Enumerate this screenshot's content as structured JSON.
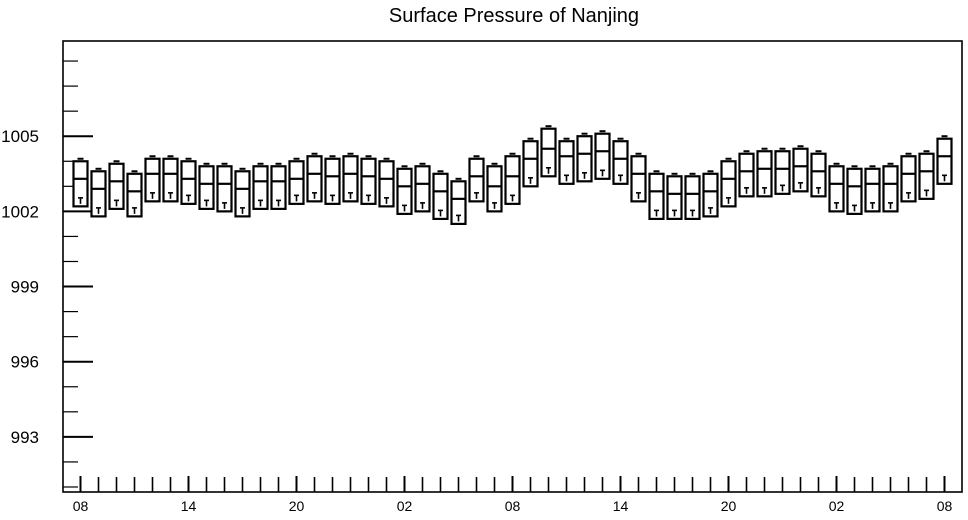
{
  "chart_data": {
    "type": "candlestick-box",
    "title": "Surface Pressure of Nanjing",
    "xlabel": "",
    "ylabel": "",
    "ylim": [
      990.8,
      1008.8
    ],
    "y_ticks": [
      993,
      996,
      999,
      1002,
      1005
    ],
    "x_ticks": [
      "08",
      "14",
      "20",
      "02",
      "08",
      "14",
      "20",
      "02",
      "08"
    ],
    "grid": false,
    "series": [
      {
        "boxes": [
          {
            "x": 0,
            "high": 1004.1,
            "top": 1004.0,
            "mid": 1003.3,
            "bottom": 1002.2,
            "low": 1002.3
          },
          {
            "x": 1,
            "high": 1003.7,
            "top": 1003.6,
            "mid": 1002.9,
            "bottom": 1001.8,
            "low": 1001.9
          },
          {
            "x": 2,
            "high": 1004.0,
            "top": 1003.9,
            "mid": 1003.2,
            "bottom": 1002.1,
            "low": 1002.2
          },
          {
            "x": 3,
            "high": 1003.6,
            "top": 1003.5,
            "mid": 1002.8,
            "bottom": 1001.8,
            "low": 1001.9
          },
          {
            "x": 4,
            "high": 1004.2,
            "top": 1004.1,
            "mid": 1003.5,
            "bottom": 1002.4,
            "low": 1002.5
          },
          {
            "x": 5,
            "high": 1004.2,
            "top": 1004.1,
            "mid": 1003.5,
            "bottom": 1002.4,
            "low": 1002.5
          },
          {
            "x": 6,
            "high": 1004.1,
            "top": 1004.0,
            "mid": 1003.3,
            "bottom": 1002.3,
            "low": 1002.4
          },
          {
            "x": 7,
            "high": 1003.9,
            "top": 1003.8,
            "mid": 1003.1,
            "bottom": 1002.1,
            "low": 1002.2
          },
          {
            "x": 8,
            "high": 1003.9,
            "top": 1003.8,
            "mid": 1003.1,
            "bottom": 1002.0,
            "low": 1002.1
          },
          {
            "x": 9,
            "high": 1003.7,
            "top": 1003.6,
            "mid": 1002.9,
            "bottom": 1001.8,
            "low": 1001.9
          },
          {
            "x": 10,
            "high": 1003.9,
            "top": 1003.8,
            "mid": 1003.2,
            "bottom": 1002.1,
            "low": 1002.2
          },
          {
            "x": 11,
            "high": 1003.9,
            "top": 1003.8,
            "mid": 1003.2,
            "bottom": 1002.1,
            "low": 1002.2
          },
          {
            "x": 12,
            "high": 1004.1,
            "top": 1004.0,
            "mid": 1003.3,
            "bottom": 1002.3,
            "low": 1002.4
          },
          {
            "x": 13,
            "high": 1004.3,
            "top": 1004.2,
            "mid": 1003.5,
            "bottom": 1002.4,
            "low": 1002.5
          },
          {
            "x": 14,
            "high": 1004.2,
            "top": 1004.1,
            "mid": 1003.4,
            "bottom": 1002.3,
            "low": 1002.4
          },
          {
            "x": 15,
            "high": 1004.3,
            "top": 1004.2,
            "mid": 1003.5,
            "bottom": 1002.4,
            "low": 1002.5
          },
          {
            "x": 16,
            "high": 1004.2,
            "top": 1004.1,
            "mid": 1003.4,
            "bottom": 1002.3,
            "low": 1002.4
          },
          {
            "x": 17,
            "high": 1004.1,
            "top": 1004.0,
            "mid": 1003.3,
            "bottom": 1002.2,
            "low": 1002.3
          },
          {
            "x": 18,
            "high": 1003.8,
            "top": 1003.7,
            "mid": 1003.0,
            "bottom": 1001.9,
            "low": 1002.0
          },
          {
            "x": 19,
            "high": 1003.9,
            "top": 1003.8,
            "mid": 1003.1,
            "bottom": 1002.0,
            "low": 1002.1
          },
          {
            "x": 20,
            "high": 1003.6,
            "top": 1003.5,
            "mid": 1002.8,
            "bottom": 1001.7,
            "low": 1001.8
          },
          {
            "x": 21,
            "high": 1003.3,
            "top": 1003.2,
            "mid": 1002.5,
            "bottom": 1001.5,
            "low": 1001.6
          },
          {
            "x": 22,
            "high": 1004.2,
            "top": 1004.1,
            "mid": 1003.4,
            "bottom": 1002.4,
            "low": 1002.5
          },
          {
            "x": 23,
            "high": 1003.9,
            "top": 1003.8,
            "mid": 1003.0,
            "bottom": 1002.0,
            "low": 1002.1
          },
          {
            "x": 24,
            "high": 1004.3,
            "top": 1004.2,
            "mid": 1003.4,
            "bottom": 1002.3,
            "low": 1002.4
          },
          {
            "x": 25,
            "high": 1004.9,
            "top": 1004.8,
            "mid": 1004.1,
            "bottom": 1003.0,
            "low": 1003.1
          },
          {
            "x": 26,
            "high": 1005.4,
            "top": 1005.3,
            "mid": 1004.5,
            "bottom": 1003.4,
            "low": 1003.5
          },
          {
            "x": 27,
            "high": 1004.9,
            "top": 1004.8,
            "mid": 1004.2,
            "bottom": 1003.1,
            "low": 1003.2
          },
          {
            "x": 28,
            "high": 1005.1,
            "top": 1005.0,
            "mid": 1004.3,
            "bottom": 1003.2,
            "low": 1003.3
          },
          {
            "x": 29,
            "high": 1005.2,
            "top": 1005.1,
            "mid": 1004.4,
            "bottom": 1003.3,
            "low": 1003.4
          },
          {
            "x": 30,
            "high": 1004.9,
            "top": 1004.8,
            "mid": 1004.1,
            "bottom": 1003.1,
            "low": 1003.2
          },
          {
            "x": 31,
            "high": 1004.3,
            "top": 1004.2,
            "mid": 1003.5,
            "bottom": 1002.4,
            "low": 1002.5
          },
          {
            "x": 32,
            "high": 1003.6,
            "top": 1003.5,
            "mid": 1002.8,
            "bottom": 1001.7,
            "low": 1001.8
          },
          {
            "x": 33,
            "high": 1003.5,
            "top": 1003.4,
            "mid": 1002.7,
            "bottom": 1001.7,
            "low": 1001.8
          },
          {
            "x": 34,
            "high": 1003.5,
            "top": 1003.4,
            "mid": 1002.7,
            "bottom": 1001.7,
            "low": 1001.8
          },
          {
            "x": 35,
            "high": 1003.6,
            "top": 1003.5,
            "mid": 1002.8,
            "bottom": 1001.8,
            "low": 1001.9
          },
          {
            "x": 36,
            "high": 1004.1,
            "top": 1004.0,
            "mid": 1003.3,
            "bottom": 1002.2,
            "low": 1002.3
          },
          {
            "x": 37,
            "high": 1004.4,
            "top": 1004.3,
            "mid": 1003.6,
            "bottom": 1002.6,
            "low": 1002.7
          },
          {
            "x": 38,
            "high": 1004.5,
            "top": 1004.4,
            "mid": 1003.7,
            "bottom": 1002.6,
            "low": 1002.7
          },
          {
            "x": 39,
            "high": 1004.5,
            "top": 1004.4,
            "mid": 1003.7,
            "bottom": 1002.7,
            "low": 1002.8
          },
          {
            "x": 40,
            "high": 1004.6,
            "top": 1004.5,
            "mid": 1003.8,
            "bottom": 1002.8,
            "low": 1002.9
          },
          {
            "x": 41,
            "high": 1004.4,
            "top": 1004.3,
            "mid": 1003.6,
            "bottom": 1002.6,
            "low": 1002.7
          },
          {
            "x": 42,
            "high": 1003.9,
            "top": 1003.8,
            "mid": 1003.1,
            "bottom": 1002.0,
            "low": 1002.1
          },
          {
            "x": 43,
            "high": 1003.8,
            "top": 1003.7,
            "mid": 1003.0,
            "bottom": 1001.9,
            "low": 1002.0
          },
          {
            "x": 44,
            "high": 1003.8,
            "top": 1003.7,
            "mid": 1003.1,
            "bottom": 1002.0,
            "low": 1002.1
          },
          {
            "x": 45,
            "high": 1003.9,
            "top": 1003.8,
            "mid": 1003.1,
            "bottom": 1002.0,
            "low": 1002.1
          },
          {
            "x": 46,
            "high": 1004.3,
            "top": 1004.2,
            "mid": 1003.5,
            "bottom": 1002.4,
            "low": 1002.5
          },
          {
            "x": 47,
            "high": 1004.4,
            "top": 1004.3,
            "mid": 1003.6,
            "bottom": 1002.5,
            "low": 1002.6
          },
          {
            "x": 48,
            "high": 1005.0,
            "top": 1004.9,
            "mid": 1004.2,
            "bottom": 1003.1,
            "low": 1003.2
          }
        ]
      }
    ]
  }
}
